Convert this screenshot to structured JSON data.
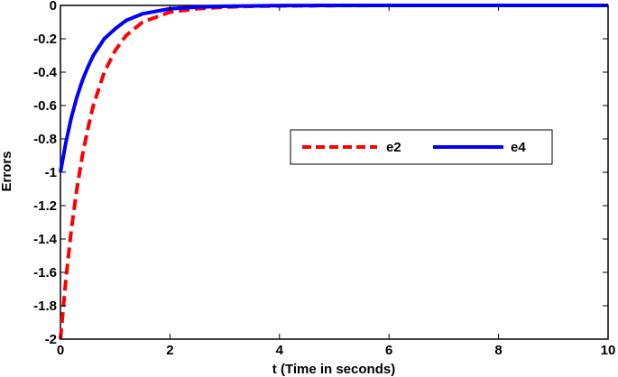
{
  "chart_data": {
    "type": "line",
    "title": "",
    "xlabel": "t (Time in seconds)",
    "ylabel": "Errors",
    "xlim": [
      0,
      10
    ],
    "ylim": [
      -2,
      0
    ],
    "xticks": [
      0,
      2,
      4,
      6,
      8,
      10
    ],
    "yticks": [
      0,
      -0.2,
      -0.4,
      -0.6,
      -0.8,
      -1,
      -1.2,
      -1.4,
      -1.6,
      -1.8,
      -2
    ],
    "grid": false,
    "legend_position": "center-right",
    "series": [
      {
        "name": "e2",
        "color": "#ff0000",
        "style": "dashed",
        "x": [
          0,
          0.1,
          0.2,
          0.3,
          0.4,
          0.5,
          0.6,
          0.8,
          1,
          1.2,
          1.5,
          2,
          2.5,
          3,
          3.5,
          4,
          5,
          6,
          7,
          8,
          9,
          10
        ],
        "y": [
          -2,
          -1.64,
          -1.34,
          -1.1,
          -0.9,
          -0.74,
          -0.6,
          -0.4,
          -0.27,
          -0.18,
          -0.1,
          -0.04,
          -0.02,
          -0.01,
          -0.005,
          -0.003,
          -0.001,
          0,
          0,
          0,
          0,
          0
        ]
      },
      {
        "name": "e4",
        "color": "#0000ff",
        "style": "solid",
        "x": [
          0,
          0.1,
          0.2,
          0.3,
          0.4,
          0.5,
          0.6,
          0.8,
          1,
          1.2,
          1.5,
          2,
          2.5,
          3,
          3.5,
          4,
          5,
          6,
          7,
          8,
          9,
          10
        ],
        "y": [
          -1,
          -0.82,
          -0.67,
          -0.55,
          -0.45,
          -0.37,
          -0.3,
          -0.2,
          -0.14,
          -0.09,
          -0.05,
          -0.02,
          -0.01,
          -0.005,
          -0.003,
          -0.001,
          0,
          0,
          0,
          0,
          0,
          0
        ]
      }
    ]
  }
}
